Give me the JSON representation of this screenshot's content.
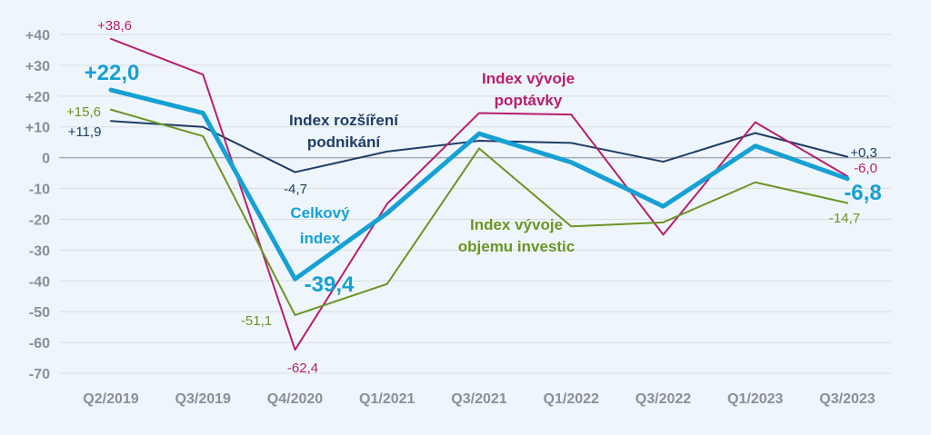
{
  "chart_data": {
    "type": "line",
    "title": "",
    "xlabel": "",
    "ylabel": "",
    "ylim": [
      -70,
      40
    ],
    "yticks": [
      "+40",
      "+30",
      "+20",
      "+10",
      "0",
      "-10",
      "-20",
      "-30",
      "-40",
      "-50",
      "-60",
      "-70"
    ],
    "ytick_values": [
      40,
      30,
      20,
      10,
      0,
      -10,
      -20,
      -30,
      -40,
      -50,
      -60,
      -70
    ],
    "categories": [
      "Q2/2019",
      "Q3/2019",
      "Q4/2020",
      "Q1/2021",
      "Q3/2021",
      "Q1/2022",
      "Q3/2022",
      "Q1/2023",
      "Q3/2023"
    ],
    "grid": "horizontal",
    "legend": "inline labels",
    "series": [
      {
        "name": "Index rozšíření podnikání",
        "label_lines": [
          "Index rozšíření",
          "podnikání"
        ],
        "color": "#1f3d66",
        "values": [
          11.9,
          10,
          -4.7,
          2,
          5.5,
          4.8,
          -1.3,
          8,
          0.3
        ],
        "labels": [
          {
            "index": 0,
            "text": "+11,9"
          },
          {
            "index": 2,
            "text": "-4,7"
          },
          {
            "index": 8,
            "text": "+0,3"
          }
        ]
      },
      {
        "name": "Index vývoje poptávky",
        "label_lines": [
          "Index vývoje",
          "poptávky"
        ],
        "color": "#b81d6e",
        "values": [
          38.6,
          27,
          -62.4,
          -15,
          14.5,
          14,
          -25,
          11.5,
          -6.0
        ],
        "labels": [
          {
            "index": 0,
            "text": "+38,6"
          },
          {
            "index": 2,
            "text": "-62,4"
          },
          {
            "index": 8,
            "text": "-6,0"
          }
        ]
      },
      {
        "name": "Index vývoje objemu investic",
        "label_lines": [
          "Index vývoje",
          "objemu investic"
        ],
        "color": "#6c9424",
        "values": [
          15.6,
          7,
          -51.1,
          -41,
          3,
          -22.3,
          -21,
          -8,
          -14.7
        ],
        "labels": [
          {
            "index": 0,
            "text": "+15,6"
          },
          {
            "index": 2,
            "text": "-51,1"
          },
          {
            "index": 8,
            "text": "-14,7"
          }
        ]
      },
      {
        "name": "Celkový index",
        "label_lines": [
          "Celkový",
          "index"
        ],
        "color": "#17a0d4",
        "values": [
          22.0,
          14.5,
          -39.4,
          -18,
          7.8,
          -1.5,
          -15.8,
          3.8,
          -6.8
        ],
        "labels": [
          {
            "index": 0,
            "text": "+22,0"
          },
          {
            "index": 2,
            "text": "-39,4"
          },
          {
            "index": 8,
            "text": "-6,8"
          }
        ]
      }
    ]
  }
}
